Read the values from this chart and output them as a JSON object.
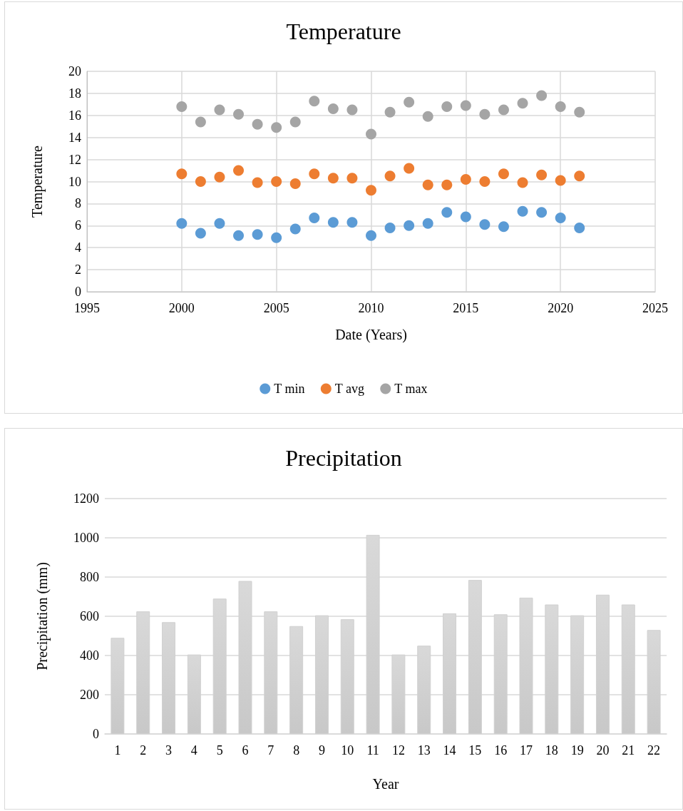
{
  "chart_data": [
    {
      "type": "scatter",
      "title": "Temperature",
      "xlabel": "Date (Years)",
      "ylabel": "Temperature",
      "x": [
        2000,
        2001,
        2002,
        2003,
        2004,
        2005,
        2006,
        2007,
        2008,
        2009,
        2010,
        2011,
        2012,
        2013,
        2014,
        2015,
        2016,
        2017,
        2018,
        2019,
        2020,
        2021
      ],
      "series": [
        {
          "name": "T min",
          "color": "#5b9bd5",
          "values": [
            6.2,
            5.3,
            6.2,
            5.1,
            5.2,
            4.9,
            5.7,
            6.7,
            6.3,
            6.3,
            5.1,
            5.8,
            6.0,
            6.2,
            7.2,
            6.8,
            6.1,
            5.9,
            7.3,
            7.2,
            6.7,
            5.8
          ]
        },
        {
          "name": "T avg",
          "color": "#ed7d31",
          "values": [
            10.7,
            10.0,
            10.4,
            11.0,
            9.9,
            10.0,
            9.8,
            10.7,
            10.3,
            10.3,
            9.2,
            10.5,
            11.2,
            9.7,
            9.7,
            10.2,
            10.0,
            10.7,
            9.9,
            10.6,
            10.1,
            10.5
          ]
        },
        {
          "name": "T max",
          "color": "#a5a5a5",
          "values": [
            16.8,
            15.4,
            16.5,
            16.1,
            15.2,
            14.9,
            15.4,
            17.3,
            16.6,
            16.5,
            14.3,
            16.3,
            17.2,
            15.9,
            16.8,
            16.9,
            16.1,
            16.5,
            17.1,
            17.8,
            16.8,
            16.3
          ]
        }
      ],
      "xlim": [
        1995,
        2025
      ],
      "xticks": [
        1995,
        2000,
        2005,
        2010,
        2015,
        2020,
        2025
      ],
      "ylim": [
        0,
        20
      ],
      "yticks": [
        0,
        2,
        4,
        6,
        8,
        10,
        12,
        14,
        16,
        18,
        20
      ],
      "grid": true,
      "legend": "bottom",
      "marker": "circle"
    },
    {
      "type": "bar",
      "title": "Precipitation",
      "xlabel": "Year",
      "ylabel": "Precipitation (mm)",
      "categories": [
        "1",
        "2",
        "3",
        "4",
        "5",
        "6",
        "7",
        "8",
        "9",
        "10",
        "11",
        "12",
        "13",
        "14",
        "15",
        "16",
        "17",
        "18",
        "19",
        "20",
        "21",
        "22"
      ],
      "values": [
        490,
        625,
        570,
        405,
        690,
        780,
        625,
        550,
        605,
        585,
        1015,
        405,
        450,
        615,
        785,
        610,
        695,
        660,
        605,
        710,
        660,
        530
      ],
      "color": "#d9d9d9",
      "ylim": [
        0,
        1200
      ],
      "yticks": [
        0,
        200,
        400,
        600,
        800,
        1000,
        1200
      ],
      "grid": "y"
    }
  ]
}
